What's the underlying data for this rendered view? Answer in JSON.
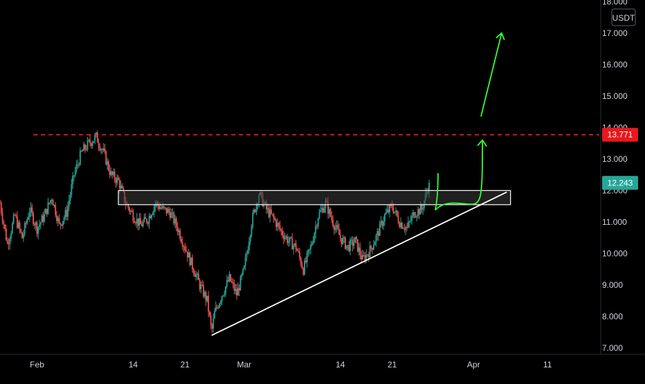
{
  "chart_data": {
    "type": "candlestick",
    "currency_label": "USDT",
    "y_axis": {
      "ticks": [
        "7.000",
        "8.000",
        "9.000",
        "10.000",
        "11.000",
        "12.000",
        "13.000",
        "14.000",
        "15.000",
        "16.000",
        "17.000",
        "18.000"
      ],
      "tick_values": [
        7,
        8,
        9,
        10,
        11,
        12,
        13,
        14,
        15,
        16,
        17,
        18
      ],
      "ylim": [
        6.8,
        18.05
      ]
    },
    "x_axis": {
      "ticks": [
        "Feb",
        "14",
        "21",
        "Mar",
        "14",
        "21",
        "Apr",
        "11"
      ],
      "tick_days": [
        0,
        13,
        20,
        28,
        41,
        48,
        59,
        69
      ],
      "xlim_days": [
        -5,
        76
      ]
    },
    "price_labels": {
      "resistance": "13.771",
      "current": "12.243"
    },
    "resistance_level": 13.771,
    "current_price": 12.243,
    "support_zone": {
      "low": 11.55,
      "high": 12.0,
      "start_day": 11,
      "end_day": 64
    },
    "trendline": {
      "start": {
        "day": 23.6,
        "price": 7.4
      },
      "end": {
        "day": 63.5,
        "price": 11.95
      }
    },
    "price_path": [
      [
        -5,
        11.6
      ],
      [
        -4,
        10.3
      ],
      [
        -3,
        11.2
      ],
      [
        -2,
        10.5
      ],
      [
        -1,
        11.4
      ],
      [
        0,
        10.8
      ],
      [
        1,
        11.2
      ],
      [
        2,
        11.8
      ],
      [
        3,
        10.9
      ],
      [
        4,
        11.3
      ],
      [
        5,
        12.5
      ],
      [
        6,
        13.2
      ],
      [
        7,
        13.5
      ],
      [
        8,
        13.7
      ],
      [
        9,
        13.2
      ],
      [
        10,
        12.5
      ],
      [
        11,
        12.3
      ],
      [
        12,
        11.6
      ],
      [
        13,
        11.2
      ],
      [
        14,
        10.9
      ],
      [
        15,
        11.1
      ],
      [
        16,
        11.6
      ],
      [
        17,
        11.4
      ],
      [
        18,
        11.3
      ],
      [
        19,
        10.8
      ],
      [
        20,
        10.2
      ],
      [
        21,
        9.6
      ],
      [
        22,
        9.0
      ],
      [
        23,
        8.5
      ],
      [
        23.6,
        7.5
      ],
      [
        24,
        8.1
      ],
      [
        25,
        8.7
      ],
      [
        26,
        9.2
      ],
      [
        27,
        8.7
      ],
      [
        28,
        9.5
      ],
      [
        29,
        11.0
      ],
      [
        30,
        11.9
      ],
      [
        31,
        11.4
      ],
      [
        32,
        11.1
      ],
      [
        33,
        10.7
      ],
      [
        34,
        10.4
      ],
      [
        35,
        10.2
      ],
      [
        36,
        9.5
      ],
      [
        37,
        10.2
      ],
      [
        38,
        11.2
      ],
      [
        39,
        11.6
      ],
      [
        40,
        11.0
      ],
      [
        41,
        10.5
      ],
      [
        42,
        10.2
      ],
      [
        43,
        10.4
      ],
      [
        44,
        9.8
      ],
      [
        45,
        10.1
      ],
      [
        46,
        10.6
      ],
      [
        47,
        11.2
      ],
      [
        48,
        11.5
      ],
      [
        49,
        11.0
      ],
      [
        50,
        10.8
      ],
      [
        51,
        11.3
      ],
      [
        52,
        11.4
      ],
      [
        53,
        12.24
      ]
    ],
    "forecast_curve": [
      [
        54.2,
        12.55
      ],
      [
        56.3,
        11.6
      ],
      [
        58.5,
        12.0
      ],
      [
        60.2,
        13.6
      ]
    ],
    "forecast_arrow": [
      [
        60.0,
        14.35
      ],
      [
        62.8,
        17.0
      ]
    ],
    "colors": {
      "up": "#26a69a",
      "down": "#ef5350",
      "resistance": "#ff2222",
      "badge_resistance": "#e8181d",
      "badge_current": "#26a69a",
      "trendline": "#ffffff",
      "forecast": "#33ff33",
      "zone_fill": "#3a3a3a",
      "zone_stroke": "#ffffff"
    }
  }
}
